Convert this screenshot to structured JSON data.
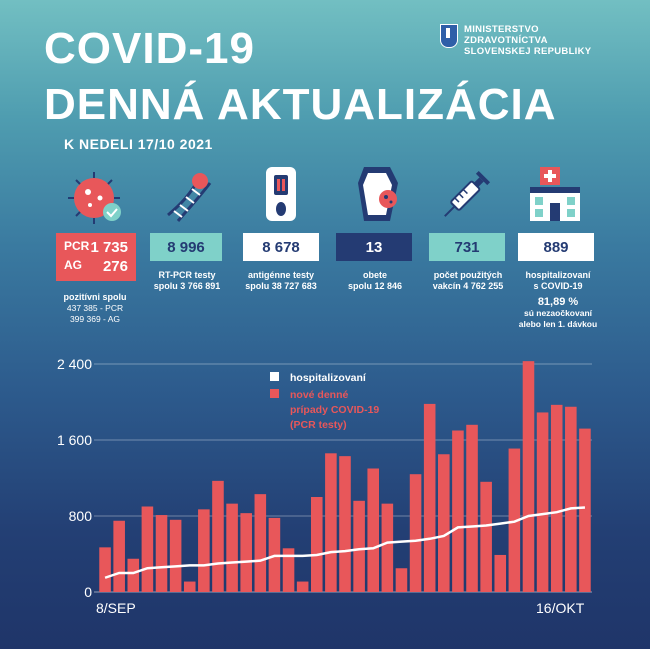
{
  "header": {
    "title_line1": "COVID-19",
    "title_line2": "DENNÁ AKTUALIZÁCIA",
    "date": "K NEDELI 17/10 2021",
    "ministry": [
      "MINISTERSTVO",
      "ZDRAVOTNÍCTVA",
      "SLOVENSKEJ REPUBLIKY"
    ]
  },
  "stats": {
    "positive": {
      "pcr_label": "PCR",
      "pcr_value": "1 735",
      "ag_label": "AG",
      "ag_value": "276",
      "caption": "pozitívni spolu",
      "total_pcr": "437 385 - PCR",
      "total_ag": "399 369 - AG"
    },
    "rtpcr": {
      "value": "8 996",
      "caption": "RT-PCR testy",
      "total": "spolu  3 766 891"
    },
    "antigen": {
      "value": "8 678",
      "caption": "antigénne testy",
      "total": "spolu 38 727 683"
    },
    "deaths": {
      "value": "13",
      "caption": "obete",
      "total": "spolu 12 846"
    },
    "vaccines": {
      "value": "731",
      "caption": "počet použitých",
      "total": "vakcín  4 762 255"
    },
    "hospital": {
      "value": "889",
      "caption1": "hospitalizovaní",
      "caption2": "s COVID-19",
      "pct": "81,89 %",
      "note1": "sú nezaočkovaní",
      "note2": "alebo len 1. dávkou"
    }
  },
  "colors": {
    "red": "#e8575a",
    "teal": "#7fd1c9",
    "navy": "#243b73",
    "white": "#ffffff"
  },
  "chart_data": {
    "type": "bar",
    "title": "",
    "x_start_label": "8/SEP",
    "x_end_label": "16/OKT",
    "ylim": [
      0,
      2400
    ],
    "yticks": [
      "0",
      "800",
      "1 600",
      "2 400"
    ],
    "ytick_values": [
      0,
      800,
      1600,
      2400
    ],
    "legend": {
      "line_label": "hospitalizovaní",
      "bar_label_1": "nové denné",
      "bar_label_2": "prípady COVID-19",
      "bar_label_3": "(PCR testy)"
    },
    "series": [
      {
        "name": "nové denné prípady COVID-19 (PCR testy)",
        "kind": "bar",
        "values": [
          470,
          750,
          350,
          900,
          810,
          760,
          110,
          870,
          1170,
          930,
          830,
          1030,
          780,
          460,
          110,
          1000,
          1460,
          1430,
          960,
          1300,
          930,
          250,
          1240,
          1980,
          1450,
          1700,
          1760,
          1160,
          390,
          1510,
          2430,
          1890,
          1970,
          1950,
          1720
        ]
      },
      {
        "name": "hospitalizovaní",
        "kind": "line",
        "values": [
          150,
          200,
          200,
          250,
          260,
          270,
          280,
          280,
          300,
          310,
          320,
          330,
          380,
          380,
          380,
          390,
          420,
          430,
          450,
          460,
          520,
          530,
          540,
          560,
          590,
          680,
          690,
          700,
          720,
          740,
          800,
          820,
          840,
          880,
          889
        ]
      }
    ]
  }
}
